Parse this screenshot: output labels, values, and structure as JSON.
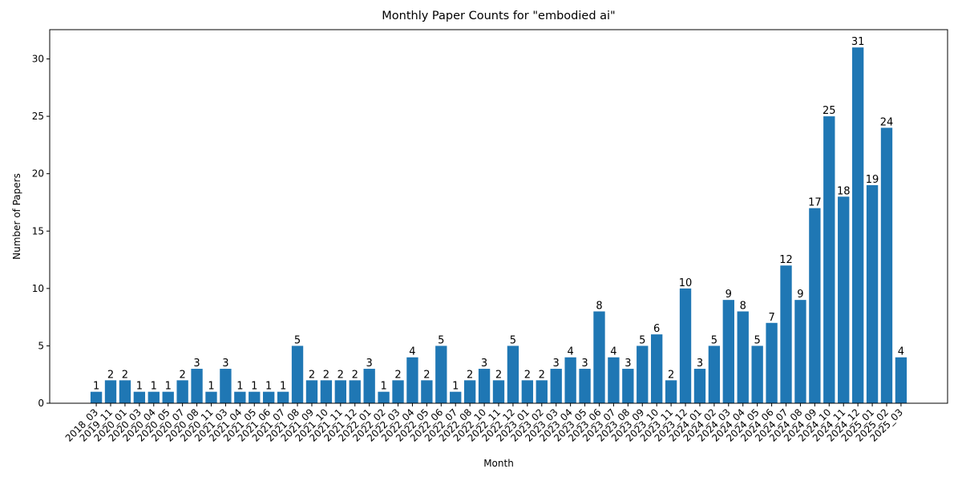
{
  "chart_data": {
    "type": "bar",
    "title": "Monthly Paper Counts for \"embodied ai\"",
    "x_label": "Month",
    "y_label": "Number of Papers",
    "categories": [
      "2018_03",
      "2019_11",
      "2020_01",
      "2020_03",
      "2020_04",
      "2020_05",
      "2020_07",
      "2020_08",
      "2020_11",
      "2021_03",
      "2021_04",
      "2021_05",
      "2021_06",
      "2021_07",
      "2021_08",
      "2021_09",
      "2021_10",
      "2021_11",
      "2021_12",
      "2022_01",
      "2022_02",
      "2022_03",
      "2022_04",
      "2022_05",
      "2022_06",
      "2022_07",
      "2022_08",
      "2022_10",
      "2022_11",
      "2022_12",
      "2023_01",
      "2023_02",
      "2023_03",
      "2023_04",
      "2023_05",
      "2023_06",
      "2023_07",
      "2023_08",
      "2023_09",
      "2023_10",
      "2023_11",
      "2023_12",
      "2024_01",
      "2024_02",
      "2024_03",
      "2024_04",
      "2024_05",
      "2024_06",
      "2024_07",
      "2024_08",
      "2024_09",
      "2024_10",
      "2024_11",
      "2024_12",
      "2025_01",
      "2025_02",
      "2025_03"
    ],
    "values": [
      1,
      2,
      2,
      1,
      1,
      1,
      2,
      3,
      1,
      3,
      1,
      1,
      1,
      1,
      5,
      2,
      2,
      2,
      2,
      3,
      1,
      2,
      4,
      2,
      5,
      1,
      2,
      3,
      2,
      5,
      2,
      2,
      3,
      4,
      3,
      8,
      4,
      3,
      5,
      6,
      2,
      10,
      3,
      5,
      9,
      8,
      5,
      7,
      12,
      9,
      17,
      25,
      18,
      31,
      19,
      24,
      4
    ],
    "color": "#1f77b4",
    "ylim": [
      0,
      32.55
    ],
    "yticks": [
      0,
      5,
      10,
      15,
      20,
      25,
      30
    ],
    "grid": false
  }
}
